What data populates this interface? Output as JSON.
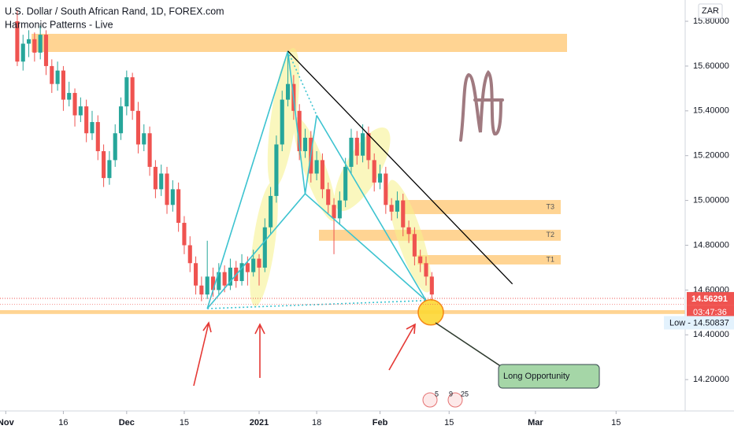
{
  "chart_data": {
    "type": "candlestick",
    "title": "U.S. Dollar / South African Rand, 1D, FOREX.com",
    "subtitle": "Harmonic Patterns - Live",
    "currency": "ZAR",
    "up_color": "#26a69a",
    "down_color": "#ef5350",
    "ylim": [
      14.06,
      15.895
    ],
    "yticks": [
      {
        "value": 14.2,
        "label": "14.20000"
      },
      {
        "value": 14.4,
        "label": "14.40000"
      },
      {
        "value": 14.6,
        "label": "14.60000"
      },
      {
        "value": 14.8,
        "label": "14.80000"
      },
      {
        "value": 15.0,
        "label": "15.00000"
      },
      {
        "value": 15.2,
        "label": "15.20000"
      },
      {
        "value": 15.4,
        "label": "15.40000"
      },
      {
        "value": 15.6,
        "label": "15.60000"
      },
      {
        "value": 15.8,
        "label": "15.80000"
      }
    ],
    "xlim": [
      -3,
      116
    ],
    "xticks": [
      {
        "value": -2,
        "label": "Nov"
      },
      {
        "value": 8,
        "label": "16"
      },
      {
        "value": 19,
        "label": "Dec"
      },
      {
        "value": 29,
        "label": "15"
      },
      {
        "value": 42,
        "label": "2021"
      },
      {
        "value": 52,
        "label": "18"
      },
      {
        "value": 63,
        "label": "Feb"
      },
      {
        "value": 75,
        "label": "15"
      },
      {
        "value": 90,
        "label": "Mar"
      },
      {
        "value": 104,
        "label": "15"
      }
    ],
    "candles": [
      [
        15.8,
        15.85,
        15.6,
        15.62
      ],
      [
        15.62,
        15.74,
        15.58,
        15.7
      ],
      [
        15.7,
        15.76,
        15.64,
        15.72
      ],
      [
        15.72,
        15.75,
        15.62,
        15.66
      ],
      [
        15.66,
        15.78,
        15.63,
        15.74
      ],
      [
        15.74,
        15.76,
        15.56,
        15.6
      ],
      [
        15.6,
        15.63,
        15.48,
        15.52
      ],
      [
        15.52,
        15.62,
        15.49,
        15.58
      ],
      [
        15.58,
        15.6,
        15.4,
        15.45
      ],
      [
        15.45,
        15.53,
        15.42,
        15.48
      ],
      [
        15.48,
        15.5,
        15.33,
        15.38
      ],
      [
        15.38,
        15.46,
        15.35,
        15.42
      ],
      [
        15.42,
        15.45,
        15.26,
        15.3
      ],
      [
        15.3,
        15.4,
        15.27,
        15.35
      ],
      [
        15.35,
        15.38,
        15.18,
        15.22
      ],
      [
        15.22,
        15.25,
        15.06,
        15.1
      ],
      [
        15.1,
        15.22,
        15.07,
        15.18
      ],
      [
        15.18,
        15.34,
        15.15,
        15.3
      ],
      [
        15.3,
        15.46,
        15.27,
        15.42
      ],
      [
        15.42,
        15.58,
        15.38,
        15.55
      ],
      [
        15.55,
        15.57,
        15.36,
        15.4
      ],
      [
        15.4,
        15.44,
        15.21,
        15.25
      ],
      [
        15.25,
        15.34,
        15.22,
        15.3
      ],
      [
        15.3,
        15.33,
        15.11,
        15.15
      ],
      [
        15.15,
        15.18,
        15.01,
        15.05
      ],
      [
        15.05,
        15.16,
        15.02,
        15.12
      ],
      [
        15.12,
        15.15,
        14.94,
        14.98
      ],
      [
        14.98,
        15.09,
        14.95,
        15.05
      ],
      [
        15.05,
        15.08,
        14.86,
        14.9
      ],
      [
        14.9,
        14.93,
        14.76,
        14.8
      ],
      [
        14.8,
        14.84,
        14.68,
        14.72
      ],
      [
        14.72,
        14.75,
        14.58,
        14.62
      ],
      [
        14.62,
        14.66,
        14.55,
        14.58
      ],
      [
        14.58,
        14.82,
        14.56,
        14.66
      ],
      [
        14.66,
        14.7,
        14.57,
        14.6
      ],
      [
        14.6,
        14.72,
        14.58,
        14.68
      ],
      [
        14.68,
        14.71,
        14.59,
        14.62
      ],
      [
        14.62,
        14.74,
        14.6,
        14.7
      ],
      [
        14.7,
        14.73,
        14.61,
        14.64
      ],
      [
        14.64,
        14.76,
        14.62,
        14.72
      ],
      [
        14.72,
        14.75,
        14.62,
        14.68
      ],
      [
        14.68,
        14.78,
        14.66,
        14.74
      ],
      [
        14.74,
        14.76,
        14.62,
        14.7
      ],
      [
        14.7,
        14.92,
        14.68,
        14.88
      ],
      [
        14.88,
        15.06,
        14.85,
        15.02
      ],
      [
        15.02,
        15.29,
        14.99,
        15.25
      ],
      [
        15.25,
        15.49,
        15.22,
        15.45
      ],
      [
        15.45,
        15.66,
        15.42,
        15.52
      ],
      [
        15.52,
        15.56,
        15.36,
        15.4
      ],
      [
        15.4,
        15.43,
        15.18,
        15.22
      ],
      [
        15.22,
        15.32,
        15.19,
        15.28
      ],
      [
        15.28,
        15.31,
        15.08,
        15.12
      ],
      [
        15.12,
        15.22,
        15.09,
        15.18
      ],
      [
        15.18,
        15.21,
        15.01,
        15.05
      ],
      [
        15.05,
        15.08,
        14.94,
        14.98
      ],
      [
        14.98,
        15.01,
        14.76,
        14.92
      ],
      [
        14.92,
        15.04,
        14.89,
        15.0
      ],
      [
        15.0,
        15.19,
        14.97,
        15.15
      ],
      [
        15.15,
        15.32,
        15.12,
        15.28
      ],
      [
        15.28,
        15.31,
        15.16,
        15.2
      ],
      [
        15.2,
        15.34,
        15.17,
        15.3
      ],
      [
        15.3,
        15.33,
        15.14,
        15.18
      ],
      [
        15.18,
        15.21,
        15.04,
        15.08
      ],
      [
        15.08,
        15.16,
        15.05,
        15.12
      ],
      [
        15.12,
        15.15,
        14.94,
        14.98
      ],
      [
        14.98,
        15.01,
        14.91,
        14.95
      ],
      [
        14.95,
        15.04,
        14.92,
        15.0
      ],
      [
        15.0,
        15.03,
        14.84,
        14.88
      ],
      [
        14.88,
        14.91,
        14.81,
        14.85
      ],
      [
        14.85,
        14.88,
        14.71,
        14.75
      ],
      [
        14.75,
        14.78,
        14.68,
        14.72
      ],
      [
        14.72,
        14.75,
        14.62,
        14.66
      ],
      [
        14.66,
        14.68,
        14.55,
        14.58
      ]
    ],
    "zones": [
      {
        "low": 15.663,
        "high": 15.744
      },
      {
        "low": 14.939,
        "high": 15.002,
        "label": "T3"
      },
      {
        "low": 14.82,
        "high": 14.869,
        "label": "T2"
      },
      {
        "low": 14.714,
        "high": 14.756,
        "label": "T1"
      },
      {
        "low": 14.493,
        "high": 14.51
      }
    ],
    "pattern": {
      "color": "#3cc3d0",
      "x": [
        33,
        47,
        50,
        52,
        71
      ],
      "y": [
        14.517,
        15.667,
        15.03,
        15.38,
        14.553
      ]
    },
    "trendline": {
      "x": [
        47,
        86
      ],
      "y": [
        15.667,
        14.627
      ]
    },
    "last_price": 14.56291,
    "countdown": "03:47:36",
    "low": {
      "value": 14.50837,
      "label": "Low - 14.50837"
    },
    "annotation": "Long Opportunity",
    "events": [
      "5",
      "9",
      "25"
    ]
  }
}
